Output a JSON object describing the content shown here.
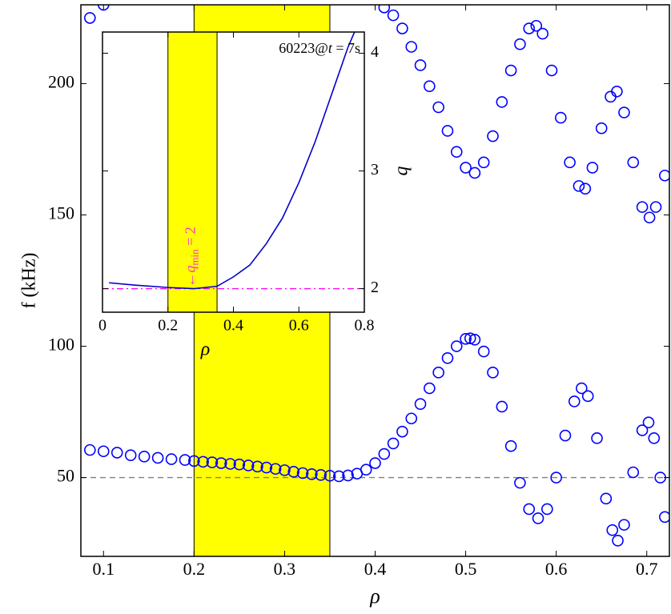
{
  "chart_data": [
    {
      "type": "scatter",
      "x_label": "ρ",
      "y_label": "f (kHz)",
      "xlim": [
        0.075,
        0.725
      ],
      "ylim": [
        20,
        230
      ],
      "xticks": [
        0.1,
        0.2,
        0.3,
        0.4,
        0.5,
        0.6,
        0.7
      ],
      "yticks": [
        50,
        100,
        150,
        200
      ],
      "band": [
        0.2,
        0.35
      ],
      "band_color": "#ffff00",
      "ref_line": 50,
      "ref_color": "#808080",
      "series": [
        {
          "color": "#0000ff",
          "x": [
            0.085,
            0.1,
            0.115,
            0.13,
            0.145,
            0.16,
            0.175,
            0.19,
            0.2,
            0.21,
            0.22,
            0.23,
            0.24,
            0.25,
            0.26,
            0.27,
            0.28,
            0.29,
            0.3,
            0.31,
            0.32,
            0.33,
            0.34,
            0.35,
            0.36,
            0.37,
            0.38,
            0.39,
            0.4,
            0.41,
            0.42,
            0.43,
            0.44,
            0.45,
            0.46,
            0.47,
            0.48,
            0.49,
            0.5,
            0.505,
            0.51,
            0.52,
            0.53,
            0.54,
            0.55,
            0.56,
            0.57,
            0.58,
            0.59,
            0.6,
            0.61,
            0.62,
            0.628,
            0.635,
            0.645,
            0.655,
            0.662,
            0.668,
            0.675,
            0.685,
            0.695,
            0.702,
            0.708,
            0.715,
            0.72
          ],
          "values": [
            60.5,
            60,
            59.5,
            58.5,
            58,
            57.5,
            57,
            56.7,
            56.3,
            56,
            55.8,
            55.5,
            55.2,
            55,
            54.6,
            54.2,
            53.8,
            53.3,
            52.8,
            52.2,
            51.7,
            51.3,
            51,
            50.7,
            50.5,
            50.8,
            51.5,
            53,
            55.5,
            59,
            63,
            67.5,
            72.5,
            78,
            84,
            90,
            95.5,
            100,
            102.8,
            103,
            102.5,
            98,
            90,
            77,
            62,
            48,
            38,
            34.5,
            38,
            50,
            66,
            79,
            84,
            81,
            65,
            42,
            30,
            26,
            32,
            52,
            68,
            71,
            65,
            50,
            35
          ]
        },
        {
          "color": "#0000ff",
          "x": [
            0.085,
            0.1,
            0.41,
            0.42,
            0.43,
            0.44,
            0.45,
            0.46,
            0.47,
            0.48,
            0.49,
            0.5,
            0.51,
            0.52,
            0.53,
            0.54,
            0.55,
            0.56,
            0.57,
            0.578,
            0.585,
            0.595,
            0.605,
            0.615,
            0.625,
            0.632,
            0.64,
            0.65,
            0.66,
            0.667,
            0.675,
            0.685,
            0.695,
            0.703,
            0.71,
            0.72
          ],
          "values": [
            225,
            230,
            229,
            226,
            221,
            214,
            207,
            199,
            191,
            182,
            174,
            168,
            166,
            170,
            180,
            193,
            205,
            215,
            221,
            222,
            219,
            205,
            187,
            170,
            161,
            160,
            168,
            183,
            195,
            197,
            189,
            170,
            153,
            149,
            153,
            165
          ]
        }
      ]
    },
    {
      "type": "line",
      "x_label": "ρ",
      "y_label": "q",
      "title_parts": [
        "60223@",
        "t",
        " = 7s"
      ],
      "annotation_parts": [
        "←",
        "q",
        "min",
        " = 2"
      ],
      "annotation_color": "#ff33cc",
      "xlim": [
        0,
        0.8
      ],
      "ylim": [
        1.8,
        4.18
      ],
      "xticks": [
        0,
        0.2,
        0.4,
        0.6,
        0.8
      ],
      "yticks": [
        2,
        3,
        4
      ],
      "band": [
        0.2,
        0.35
      ],
      "band_color": "#ffff00",
      "ref_line": 2,
      "ref_color": "#ff00ff",
      "series": [
        {
          "color": "#0000cc",
          "x": [
            0.02,
            0.1,
            0.2,
            0.28,
            0.35,
            0.4,
            0.45,
            0.5,
            0.55,
            0.6,
            0.65,
            0.7,
            0.75,
            0.77
          ],
          "values": [
            2.05,
            2.03,
            2.01,
            2.0,
            2.02,
            2.1,
            2.2,
            2.38,
            2.6,
            2.9,
            3.25,
            3.65,
            4.05,
            4.18
          ]
        }
      ]
    }
  ]
}
